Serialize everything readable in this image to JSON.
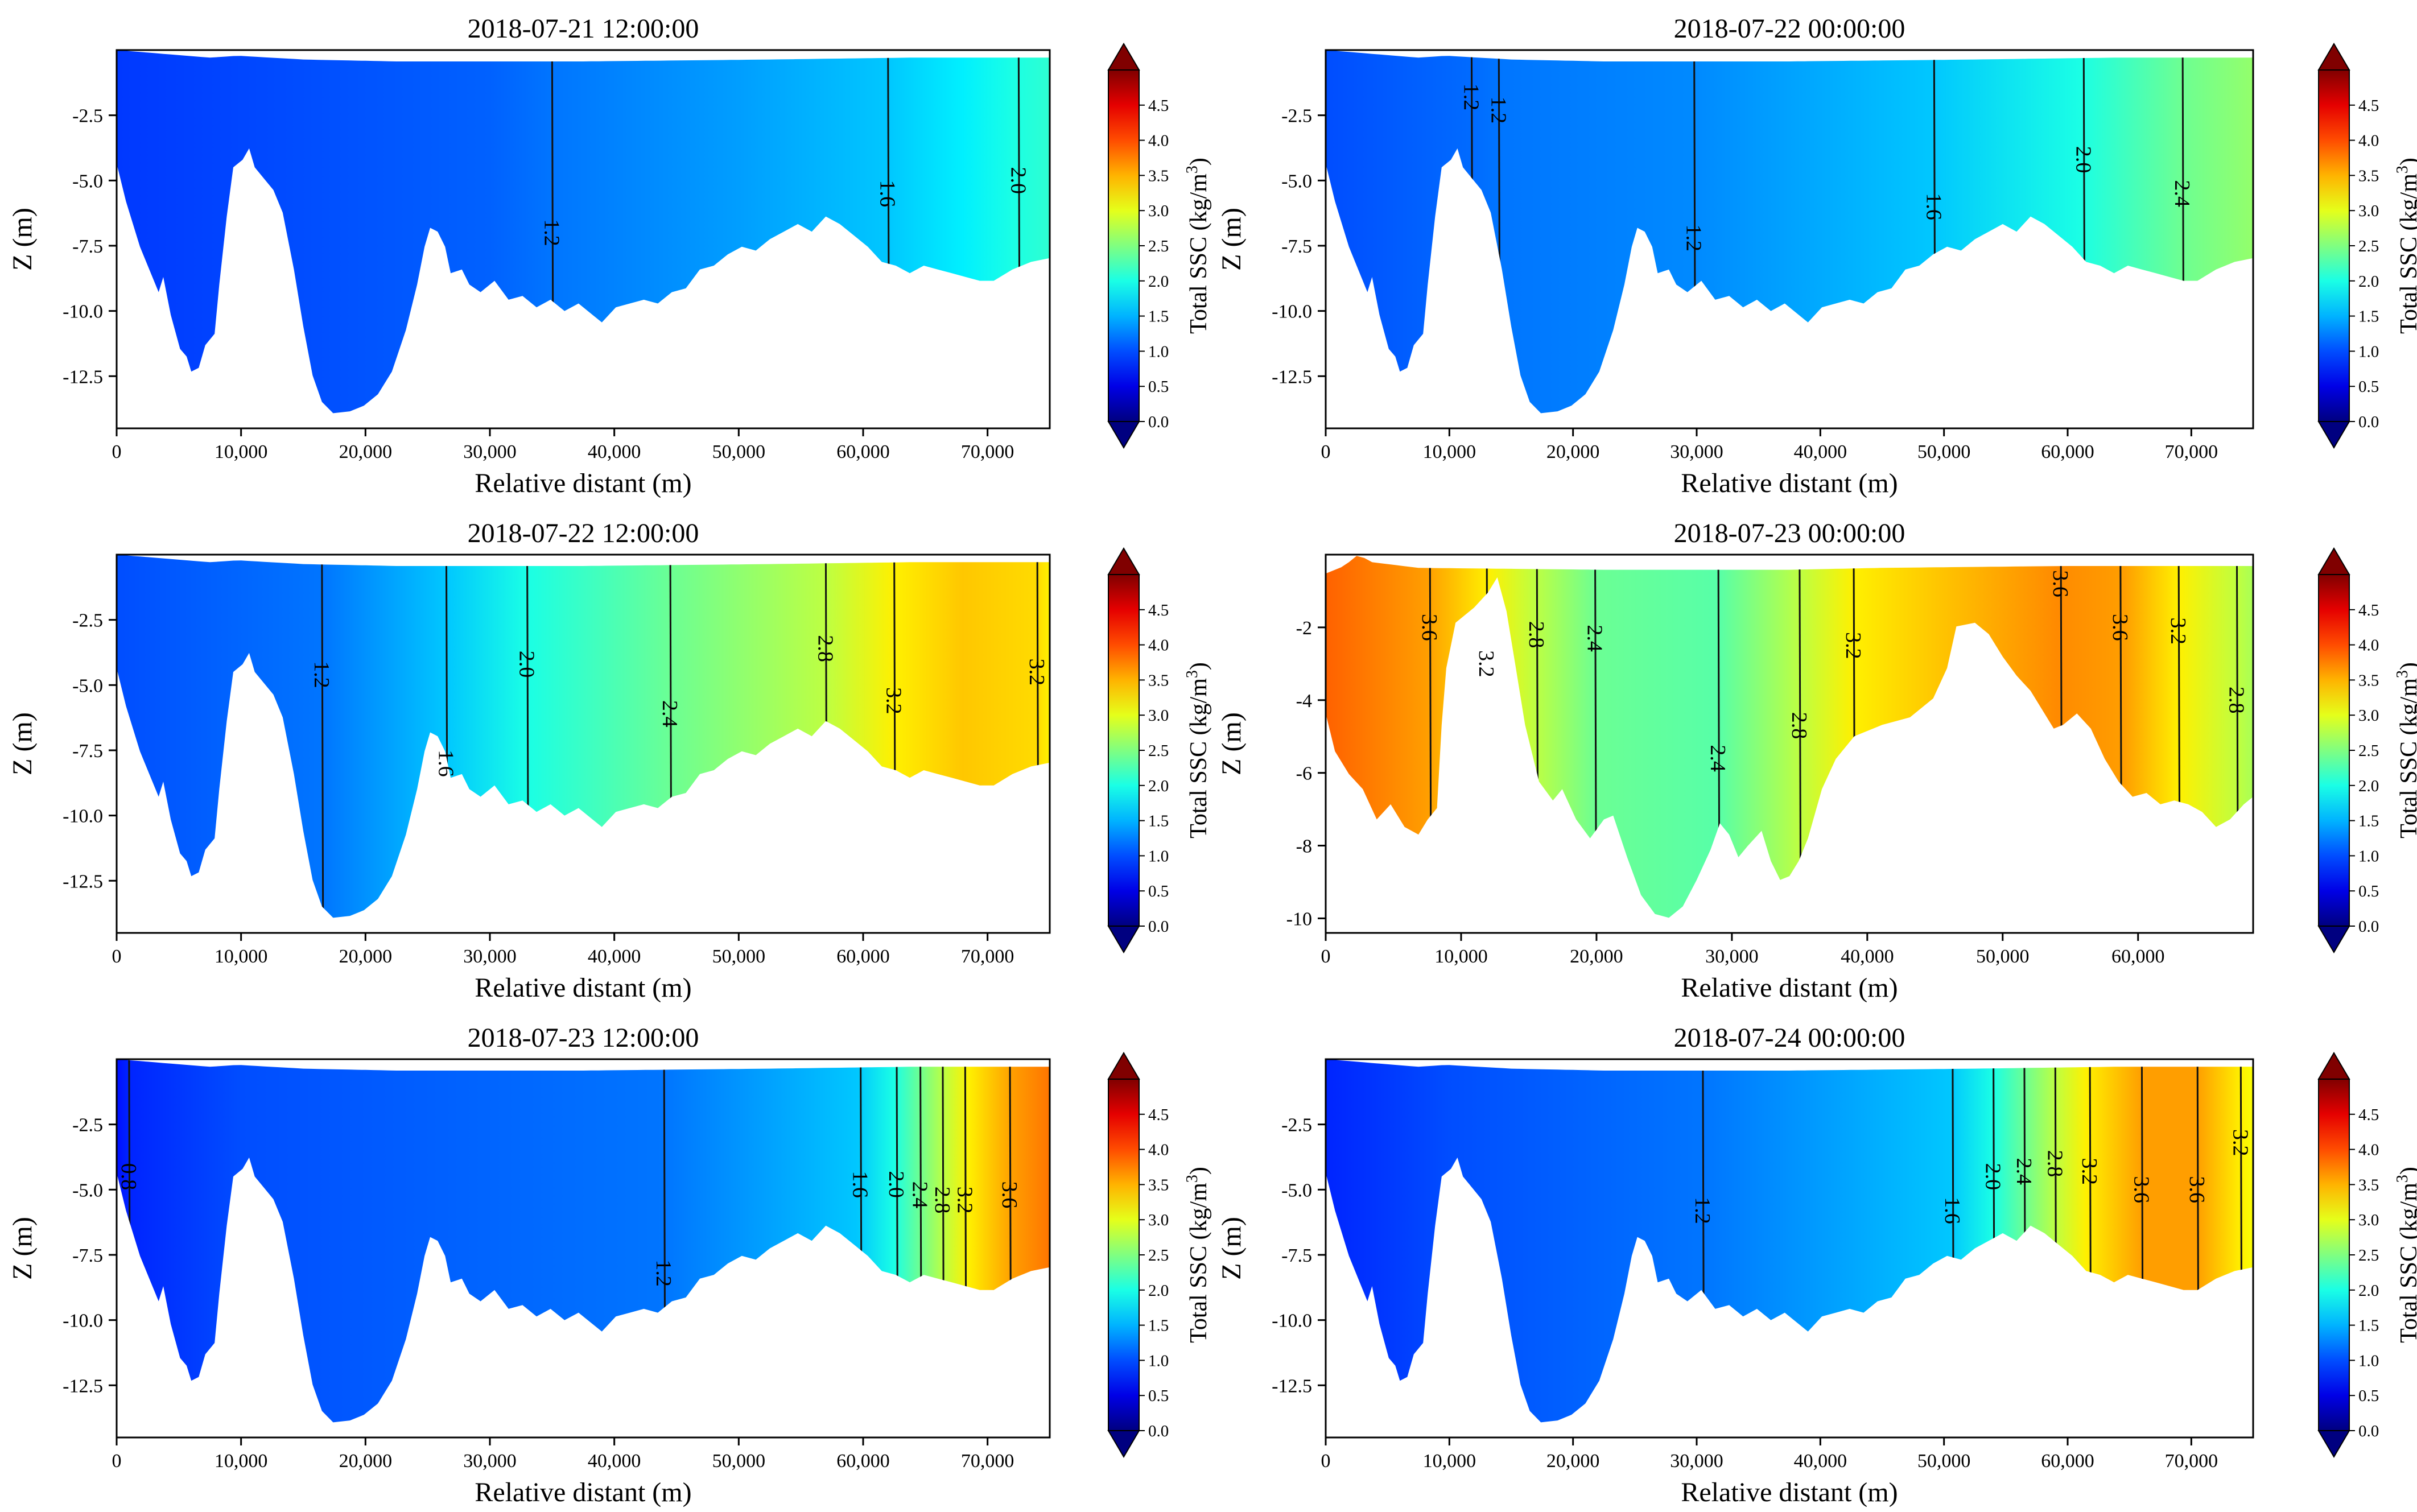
{
  "figure": {
    "colorbar_label": "Total SSC (kg/m",
    "colorbar_label_sup": "3",
    "colorbar_label_end": ")",
    "colorbar_ticks": [
      "0.0",
      "0.5",
      "1.0",
      "1.5",
      "2.0",
      "2.5",
      "3.0",
      "3.5",
      "4.0",
      "4.5"
    ]
  },
  "chart_data": [
    {
      "type": "contour",
      "title": "2018-07-21 12:00:00",
      "xlabel": "Relative distant (m)",
      "ylabel": "Z (m)",
      "xlim": [
        0,
        75000
      ],
      "ylim": [
        -14.5,
        0
      ],
      "xticks": [
        "0",
        "10,000",
        "20,000",
        "30,000",
        "40,000",
        "50,000",
        "60,000",
        "70,000"
      ],
      "yticks": [
        "-2.5",
        "-5.0",
        "-7.5",
        "-10.0",
        "-12.5"
      ],
      "colorbar_range": [
        0,
        5
      ],
      "ssc_profile": [
        [
          0,
          0.9
        ],
        [
          30000,
          1.1
        ],
        [
          35000,
          1.2
        ],
        [
          50000,
          1.4
        ],
        [
          62000,
          1.6
        ],
        [
          68000,
          1.8
        ],
        [
          72000,
          2.0
        ],
        [
          75000,
          2.1
        ]
      ],
      "contours": [
        {
          "label": "1.2",
          "x": 35000,
          "label_y": -7.0
        },
        {
          "label": "1.6",
          "x": 62000,
          "label_y": -5.5
        },
        {
          "label": "2.0",
          "x": 72500,
          "label_y": -5.0
        }
      ]
    },
    {
      "type": "contour",
      "title": "2018-07-22 00:00:00",
      "xlabel": "Relative distant (m)",
      "ylabel": "Z (m)",
      "xlim": [
        0,
        75000
      ],
      "ylim": [
        -14.5,
        0
      ],
      "xticks": [
        "0",
        "10,000",
        "20,000",
        "30,000",
        "40,000",
        "50,000",
        "60,000",
        "70,000"
      ],
      "yticks": [
        "-2.5",
        "-5.0",
        "-7.5",
        "-10.0",
        "-12.5"
      ],
      "colorbar_range": [
        0,
        5
      ],
      "ssc_profile": [
        [
          0,
          1.0
        ],
        [
          12000,
          1.15
        ],
        [
          14000,
          1.2
        ],
        [
          30000,
          1.3
        ],
        [
          49000,
          1.6
        ],
        [
          61000,
          2.0
        ],
        [
          69000,
          2.4
        ],
        [
          75000,
          2.6
        ]
      ],
      "contours": [
        {
          "label": "1.2",
          "x": 11800,
          "label_y": -1.8
        },
        {
          "label": "1.2",
          "x": 14000,
          "label_y": -2.3
        },
        {
          "label": "1.2",
          "x": 29800,
          "label_y": -7.2
        },
        {
          "label": "1.6",
          "x": 49200,
          "label_y": -6.0
        },
        {
          "label": "2.0",
          "x": 61300,
          "label_y": -4.2
        },
        {
          "label": "2.4",
          "x": 69300,
          "label_y": -5.5
        }
      ]
    },
    {
      "type": "contour",
      "title": "2018-07-22 12:00:00",
      "xlabel": "Relative distant (m)",
      "ylabel": "Z (m)",
      "xlim": [
        0,
        75000
      ],
      "ylim": [
        -14.5,
        0
      ],
      "xticks": [
        "0",
        "10,000",
        "20,000",
        "30,000",
        "40,000",
        "50,000",
        "60,000",
        "70,000"
      ],
      "yticks": [
        "-2.5",
        "-5.0",
        "-7.5",
        "-10.0",
        "-12.5"
      ],
      "colorbar_range": [
        0,
        5
      ],
      "ssc_profile": [
        [
          0,
          1.0
        ],
        [
          16500,
          1.2
        ],
        [
          26500,
          1.6
        ],
        [
          33000,
          2.0
        ],
        [
          44500,
          2.4
        ],
        [
          57000,
          2.8
        ],
        [
          62500,
          3.2
        ],
        [
          68000,
          3.4
        ],
        [
          74000,
          3.3
        ],
        [
          75000,
          3.2
        ]
      ],
      "contours": [
        {
          "label": "1.2",
          "x": 16500,
          "label_y": -4.6
        },
        {
          "label": "1.6",
          "x": 26500,
          "label_y": -8.0
        },
        {
          "label": "2.0",
          "x": 33000,
          "label_y": -4.2
        },
        {
          "label": "2.4",
          "x": 44500,
          "label_y": -6.1
        },
        {
          "label": "2.8",
          "x": 57000,
          "label_y": -3.6
        },
        {
          "label": "3.2",
          "x": 62500,
          "label_y": -5.6
        },
        {
          "label": "3.2",
          "x": 74000,
          "label_y": -4.5
        }
      ]
    },
    {
      "type": "contour",
      "title": "2018-07-23 00:00:00",
      "xlabel": "Relative distant (m)",
      "ylabel": "Z (m)",
      "xlim": [
        0,
        68500
      ],
      "ylim": [
        -10.4,
        0
      ],
      "xticks": [
        "0",
        "10,000",
        "20,000",
        "30,000",
        "40,000",
        "50,000",
        "60,000"
      ],
      "yticks": [
        "-2",
        "-4",
        "-6",
        "-8",
        "-10"
      ],
      "colorbar_range": [
        0,
        5
      ],
      "ssc_profile": [
        [
          0,
          3.9
        ],
        [
          7500,
          3.6
        ],
        [
          12000,
          3.2
        ],
        [
          15500,
          2.8
        ],
        [
          20000,
          2.4
        ],
        [
          29000,
          2.3
        ],
        [
          35000,
          2.8
        ],
        [
          39000,
          3.2
        ],
        [
          54000,
          3.7
        ],
        [
          59000,
          3.6
        ],
        [
          63000,
          3.2
        ],
        [
          67500,
          2.8
        ],
        [
          68500,
          2.7
        ]
      ],
      "contours": [
        {
          "label": "3.6",
          "x": 7700,
          "label_y": -2.0
        },
        {
          "label": "3.2",
          "x": 11900,
          "label_y": -3.0
        },
        {
          "label": "2.8",
          "x": 15600,
          "label_y": -2.2
        },
        {
          "label": "2.4",
          "x": 19900,
          "label_y": -2.3
        },
        {
          "label": "2.4",
          "x": 29000,
          "label_y": -5.6
        },
        {
          "label": "2.8",
          "x": 35000,
          "label_y": -4.7
        },
        {
          "label": "3.2",
          "x": 39000,
          "label_y": -2.5
        },
        {
          "label": "3.6",
          "x": 54300,
          "label_y": -0.8
        },
        {
          "label": "3.6",
          "x": 58700,
          "label_y": -2.0
        },
        {
          "label": "3.2",
          "x": 63000,
          "label_y": -2.1
        },
        {
          "label": "2.8",
          "x": 67300,
          "label_y": -4.0
        }
      ]
    },
    {
      "type": "contour",
      "title": "2018-07-23 12:00:00",
      "xlabel": "Relative distant (m)",
      "ylabel": "Z (m)",
      "xlim": [
        0,
        75000
      ],
      "ylim": [
        -14.5,
        0
      ],
      "xticks": [
        "0",
        "10,000",
        "20,000",
        "30,000",
        "40,000",
        "50,000",
        "60,000",
        "70,000"
      ],
      "yticks": [
        "-2.5",
        "-5.0",
        "-7.5",
        "-10.0",
        "-12.5"
      ],
      "colorbar_range": [
        0,
        5
      ],
      "ssc_profile": [
        [
          0,
          0.7
        ],
        [
          1000,
          0.8
        ],
        [
          10000,
          1.0
        ],
        [
          44000,
          1.2
        ],
        [
          59500,
          1.6
        ],
        [
          62500,
          2.0
        ],
        [
          64500,
          2.4
        ],
        [
          66500,
          2.8
        ],
        [
          68500,
          3.2
        ],
        [
          72000,
          3.6
        ],
        [
          75000,
          3.8
        ]
      ],
      "contours": [
        {
          "label": "0.8",
          "x": 1000,
          "label_y": -4.5
        },
        {
          "label": "1.2",
          "x": 44000,
          "label_y": -8.2
        },
        {
          "label": "1.6",
          "x": 59800,
          "label_y": -4.8
        },
        {
          "label": "2.0",
          "x": 62700,
          "label_y": -4.8
        },
        {
          "label": "2.4",
          "x": 64600,
          "label_y": -5.2
        },
        {
          "label": "2.8",
          "x": 66400,
          "label_y": -5.4
        },
        {
          "label": "3.2",
          "x": 68200,
          "label_y": -5.4
        },
        {
          "label": "3.6",
          "x": 71800,
          "label_y": -5.2
        }
      ]
    },
    {
      "type": "contour",
      "title": "2018-07-24 00:00:00",
      "xlabel": "Relative distant (m)",
      "ylabel": "Z (m)",
      "xlim": [
        0,
        75000
      ],
      "ylim": [
        -14.5,
        0
      ],
      "xticks": [
        "0",
        "10,000",
        "20,000",
        "30,000",
        "40,000",
        "50,000",
        "60,000",
        "70,000"
      ],
      "yticks": [
        "-2.5",
        "-5.0",
        "-7.5",
        "-10.0",
        "-12.5"
      ],
      "colorbar_range": [
        0,
        5
      ],
      "ssc_profile": [
        [
          0,
          0.8
        ],
        [
          10000,
          1.0
        ],
        [
          30500,
          1.2
        ],
        [
          50500,
          1.6
        ],
        [
          54000,
          2.0
        ],
        [
          56500,
          2.4
        ],
        [
          59000,
          2.8
        ],
        [
          61500,
          3.2
        ],
        [
          66000,
          3.6
        ],
        [
          70500,
          3.6
        ],
        [
          74000,
          3.2
        ],
        [
          75000,
          3.1
        ]
      ],
      "contours": [
        {
          "label": "1.2",
          "x": 30500,
          "label_y": -5.8
        },
        {
          "label": "1.6",
          "x": 50700,
          "label_y": -5.8
        },
        {
          "label": "2.0",
          "x": 54000,
          "label_y": -4.5
        },
        {
          "label": "2.4",
          "x": 56500,
          "label_y": -4.3
        },
        {
          "label": "2.8",
          "x": 59000,
          "label_y": -4.0
        },
        {
          "label": "3.2",
          "x": 61800,
          "label_y": -4.3
        },
        {
          "label": "3.6",
          "x": 66000,
          "label_y": -5.0
        },
        {
          "label": "3.6",
          "x": 70500,
          "label_y": -5.0
        },
        {
          "label": "3.2",
          "x": 74000,
          "label_y": -3.2
        }
      ]
    }
  ]
}
